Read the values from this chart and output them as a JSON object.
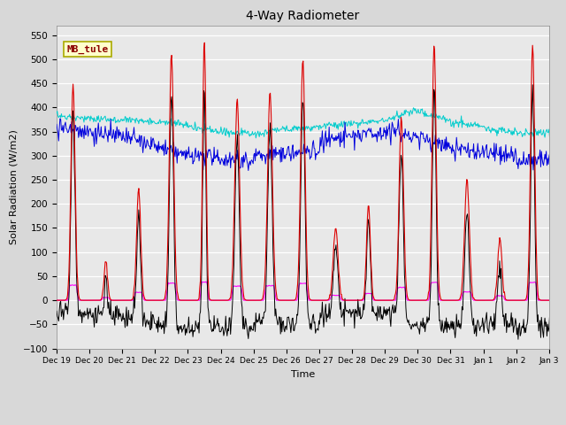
{
  "title": "4-Way Radiometer",
  "xlabel": "Time",
  "ylabel": "Solar Radiation (W/m2)",
  "ylim": [
    -100,
    570
  ],
  "yticks": [
    -100,
    -50,
    0,
    50,
    100,
    150,
    200,
    250,
    300,
    350,
    400,
    450,
    500,
    550
  ],
  "station_label": "MB_tule",
  "colors": {
    "SW_in": "#dd0000",
    "SW_out": "#ff00ff",
    "LW_in": "#0000dd",
    "LW_out": "#00cccc",
    "Rnet_4way": "#000000"
  },
  "fig_bg_color": "#d8d8d8",
  "plot_bg_color": "#e8e8e8",
  "tick_labels": [
    "Dec 19",
    "Dec 20",
    "Dec 21",
    "Dec 22",
    "Dec 23",
    "Dec 24",
    "Dec 25",
    "Dec 26",
    "Dec 27",
    "Dec 28",
    "Dec 29",
    "Dec 30",
    "Dec 31",
    "Jan 1",
    "Jan 2",
    "Jan 3"
  ],
  "seed": 42
}
